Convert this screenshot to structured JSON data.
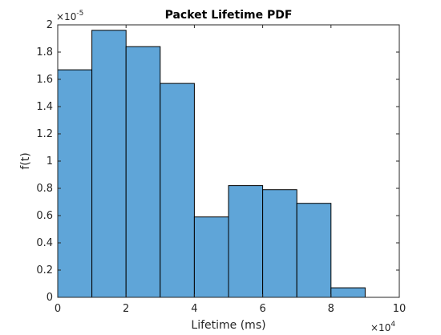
{
  "chart_data": {
    "type": "bar",
    "title": "Packet Lifetime PDF",
    "xlabel": "Lifetime (ms)",
    "ylabel": "f(t)",
    "x_multiplier_label": "×10",
    "x_multiplier_exponent": "4",
    "y_multiplier_label": "×10",
    "y_multiplier_exponent": "-5",
    "xlim": [
      0,
      10
    ],
    "ylim": [
      0,
      2
    ],
    "x_ticks": [
      0,
      2,
      4,
      6,
      8,
      10
    ],
    "x_tick_labels": [
      "0",
      "2",
      "4",
      "6",
      "8",
      "10"
    ],
    "y_ticks": [
      0,
      0.2,
      0.4,
      0.6,
      0.8,
      1,
      1.2,
      1.4,
      1.6,
      1.8,
      2
    ],
    "y_tick_labels": [
      "0",
      "0.2",
      "0.4",
      "0.6",
      "0.8",
      "1",
      "1.2",
      "1.4",
      "1.6",
      "1.8",
      "2"
    ],
    "bin_edges": [
      0,
      1,
      2,
      3,
      4,
      5,
      6,
      7,
      8,
      9
    ],
    "values": [
      1.67,
      1.96,
      1.84,
      1.57,
      0.59,
      0.82,
      0.79,
      0.69,
      0.07
    ],
    "bar_color": "#5fa5d8",
    "edge_color": "#000000",
    "grid": false,
    "box": true
  }
}
